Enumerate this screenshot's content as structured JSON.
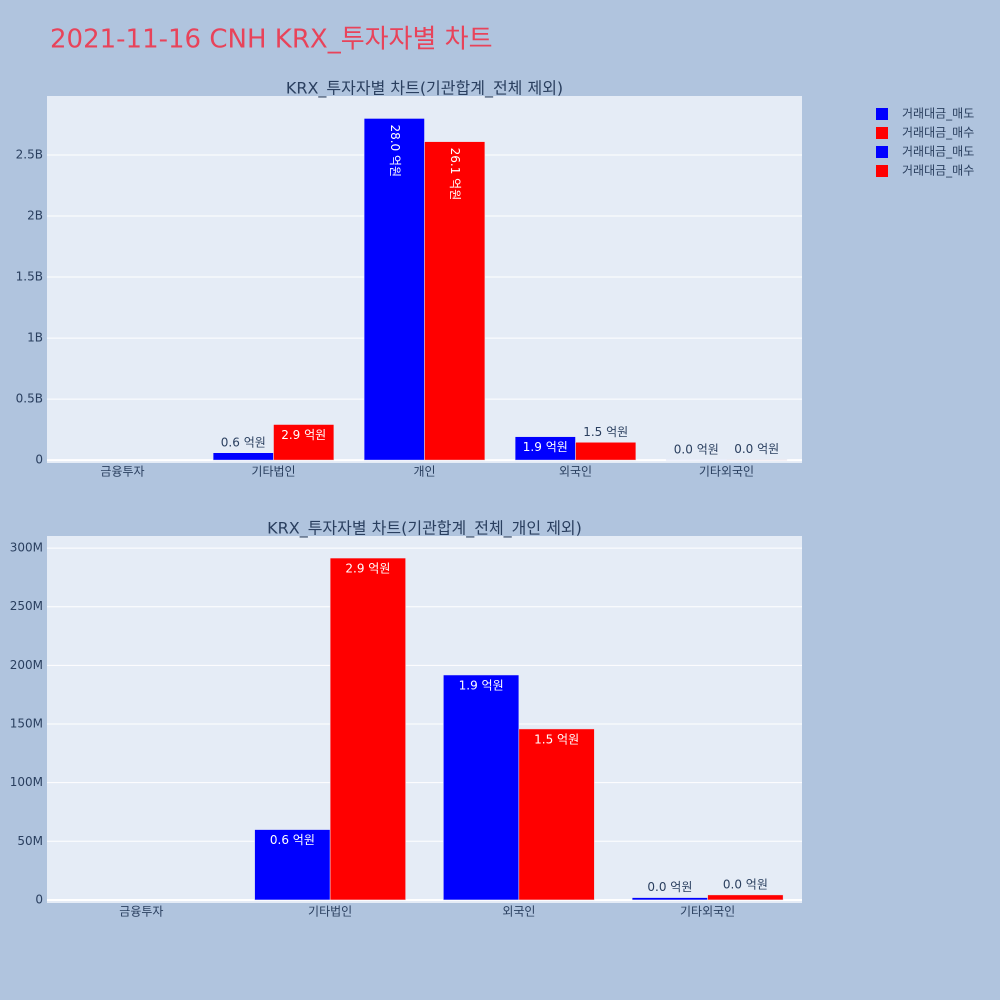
{
  "title": "2021-11-16 CNH KRX_투자자별 차트",
  "chart_data": [
    {
      "type": "bar",
      "title": "KRX_투자자별 차트(기관합계_전체 제외)",
      "categories": [
        "금융투자",
        "기타법인",
        "개인",
        "외국인",
        "기타외국인"
      ],
      "series": [
        {
          "name": "거래대금_매도",
          "color": "#0000ff",
          "values": [
            0,
            60000000,
            2800000000,
            191800000,
            2000000
          ],
          "value_labels": [
            null,
            "0.6 억원",
            "28.0 억원",
            "1.9 억원",
            "0.0 억원"
          ]
        },
        {
          "name": "거래대금_매수",
          "color": "#ff0000",
          "values": [
            0,
            291500000,
            2610000000,
            145800000,
            4300000
          ],
          "value_labels": [
            null,
            "2.9 억원",
            "26.1 억원",
            "1.5 억원",
            "0.0 억원"
          ]
        }
      ],
      "ylim": [
        -24000000,
        2984000000
      ],
      "yticks": [
        0,
        {
          "value": 500000000,
          "label": "0.5B"
        },
        {
          "value": 1000000000,
          "label": "1B"
        },
        {
          "value": 1500000000,
          "label": "1.5B"
        },
        {
          "value": 2000000000,
          "label": "2B"
        },
        {
          "value": 2500000000,
          "label": "2.5B"
        }
      ],
      "grid": true
    },
    {
      "type": "bar",
      "title": "KRX_투자자별 차트(기관합계_전체_개인 제외)",
      "categories": [
        "금융투자",
        "기타법인",
        "외국인",
        "기타외국인"
      ],
      "series": [
        {
          "name": "거래대금_매도",
          "color": "#0000ff",
          "values": [
            0,
            60000000,
            191800000,
            2000000
          ],
          "value_labels": [
            null,
            "0.6 억원",
            "1.9 억원",
            "0.0 억원"
          ]
        },
        {
          "name": "거래대금_매수",
          "color": "#ff0000",
          "values": [
            0,
            291500000,
            145800000,
            4300000
          ],
          "value_labels": [
            null,
            "2.9 억원",
            "1.5 억원",
            "0.0 억원"
          ]
        }
      ],
      "ylim": [
        -2600000,
        310300000
      ],
      "yticks": [
        0,
        {
          "value": 50000000,
          "label": "50M"
        },
        {
          "value": 100000000,
          "label": "100M"
        },
        {
          "value": 150000000,
          "label": "150M"
        },
        {
          "value": 200000000,
          "label": "200M"
        },
        {
          "value": 250000000,
          "label": "250M"
        },
        {
          "value": 300000000,
          "label": "300M"
        }
      ],
      "grid": true
    }
  ]
}
